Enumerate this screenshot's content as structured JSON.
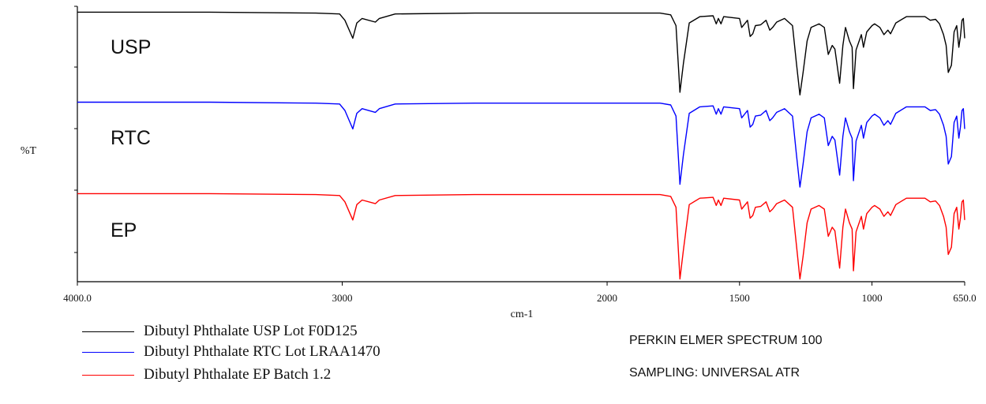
{
  "chart_data": {
    "type": "line",
    "title": "",
    "xlabel": "cm-1",
    "ylabel": "%T",
    "xlim": [
      4000.0,
      650.0
    ],
    "x_reversed": true,
    "x_ticks": [
      {
        "value": 4000,
        "label": "4000.0"
      },
      {
        "value": 3000,
        "label": "3000"
      },
      {
        "value": 2000,
        "label": "2000"
      },
      {
        "value": 1500,
        "label": "1500"
      },
      {
        "value": 1000,
        "label": "1000"
      },
      {
        "value": 650,
        "label": "650.0"
      }
    ],
    "grid": false,
    "legend_position": "bottom-left",
    "series": [
      {
        "name": "Dibutyl Phthalate USP Lot F0D125",
        "tag": "USP",
        "color": "#000000",
        "points": [
          [
            4000,
            97
          ],
          [
            3500,
            97
          ],
          [
            3100,
            96
          ],
          [
            3010,
            95
          ],
          [
            2990,
            88
          ],
          [
            2960,
            68
          ],
          [
            2945,
            85
          ],
          [
            2925,
            90
          ],
          [
            2875,
            86
          ],
          [
            2860,
            90
          ],
          [
            2800,
            95
          ],
          [
            2500,
            96
          ],
          [
            2000,
            96
          ],
          [
            1800,
            96
          ],
          [
            1760,
            94
          ],
          [
            1740,
            82
          ],
          [
            1725,
            8
          ],
          [
            1712,
            40
          ],
          [
            1690,
            85
          ],
          [
            1650,
            92
          ],
          [
            1600,
            93
          ],
          [
            1588,
            84
          ],
          [
            1580,
            90
          ],
          [
            1570,
            84
          ],
          [
            1560,
            92
          ],
          [
            1500,
            90
          ],
          [
            1492,
            80
          ],
          [
            1470,
            88
          ],
          [
            1460,
            70
          ],
          [
            1450,
            73
          ],
          [
            1440,
            82
          ],
          [
            1420,
            83
          ],
          [
            1400,
            88
          ],
          [
            1386,
            77
          ],
          [
            1375,
            80
          ],
          [
            1360,
            86
          ],
          [
            1330,
            90
          ],
          [
            1300,
            82
          ],
          [
            1285,
            40
          ],
          [
            1272,
            5
          ],
          [
            1260,
            30
          ],
          [
            1245,
            65
          ],
          [
            1230,
            80
          ],
          [
            1200,
            84
          ],
          [
            1180,
            80
          ],
          [
            1165,
            50
          ],
          [
            1150,
            60
          ],
          [
            1140,
            56
          ],
          [
            1122,
            18
          ],
          [
            1110,
            60
          ],
          [
            1100,
            80
          ],
          [
            1085,
            65
          ],
          [
            1075,
            58
          ],
          [
            1070,
            12
          ],
          [
            1060,
            55
          ],
          [
            1040,
            72
          ],
          [
            1032,
            58
          ],
          [
            1020,
            75
          ],
          [
            1000,
            82
          ],
          [
            990,
            84
          ],
          [
            970,
            80
          ],
          [
            955,
            72
          ],
          [
            940,
            77
          ],
          [
            930,
            73
          ],
          [
            910,
            85
          ],
          [
            870,
            92
          ],
          [
            800,
            92
          ],
          [
            780,
            88
          ],
          [
            760,
            89
          ],
          [
            745,
            84
          ],
          [
            730,
            72
          ],
          [
            720,
            60
          ],
          [
            712,
            30
          ],
          [
            700,
            38
          ],
          [
            690,
            75
          ],
          [
            680,
            82
          ],
          [
            672,
            58
          ],
          [
            666,
            70
          ],
          [
            660,
            88
          ],
          [
            655,
            90
          ],
          [
            650,
            68
          ]
        ]
      },
      {
        "name": "Dibutyl Phthalate RTC  Lot LRAA1470",
        "tag": "RTC",
        "color": "#0000ff",
        "points": [
          [
            4000,
            97
          ],
          [
            3500,
            97
          ],
          [
            3100,
            96
          ],
          [
            3010,
            95
          ],
          [
            2990,
            88
          ],
          [
            2960,
            68
          ],
          [
            2945,
            85
          ],
          [
            2925,
            90
          ],
          [
            2875,
            86
          ],
          [
            2860,
            90
          ],
          [
            2800,
            95
          ],
          [
            2500,
            96
          ],
          [
            2000,
            96
          ],
          [
            1800,
            96
          ],
          [
            1760,
            94
          ],
          [
            1740,
            82
          ],
          [
            1725,
            8
          ],
          [
            1712,
            40
          ],
          [
            1690,
            85
          ],
          [
            1650,
            92
          ],
          [
            1600,
            93
          ],
          [
            1588,
            84
          ],
          [
            1580,
            90
          ],
          [
            1570,
            84
          ],
          [
            1560,
            92
          ],
          [
            1500,
            90
          ],
          [
            1492,
            80
          ],
          [
            1470,
            88
          ],
          [
            1460,
            70
          ],
          [
            1450,
            73
          ],
          [
            1440,
            82
          ],
          [
            1420,
            83
          ],
          [
            1400,
            88
          ],
          [
            1386,
            77
          ],
          [
            1375,
            80
          ],
          [
            1360,
            86
          ],
          [
            1330,
            90
          ],
          [
            1300,
            82
          ],
          [
            1285,
            40
          ],
          [
            1272,
            5
          ],
          [
            1260,
            30
          ],
          [
            1245,
            65
          ],
          [
            1230,
            80
          ],
          [
            1200,
            84
          ],
          [
            1180,
            80
          ],
          [
            1165,
            50
          ],
          [
            1150,
            60
          ],
          [
            1140,
            56
          ],
          [
            1122,
            18
          ],
          [
            1110,
            60
          ],
          [
            1100,
            80
          ],
          [
            1085,
            65
          ],
          [
            1075,
            58
          ],
          [
            1070,
            12
          ],
          [
            1060,
            55
          ],
          [
            1040,
            72
          ],
          [
            1032,
            58
          ],
          [
            1020,
            75
          ],
          [
            1000,
            82
          ],
          [
            990,
            84
          ],
          [
            970,
            80
          ],
          [
            955,
            72
          ],
          [
            940,
            77
          ],
          [
            930,
            73
          ],
          [
            910,
            85
          ],
          [
            870,
            92
          ],
          [
            800,
            92
          ],
          [
            780,
            88
          ],
          [
            760,
            89
          ],
          [
            745,
            84
          ],
          [
            730,
            72
          ],
          [
            720,
            60
          ],
          [
            712,
            30
          ],
          [
            700,
            38
          ],
          [
            690,
            75
          ],
          [
            680,
            82
          ],
          [
            672,
            58
          ],
          [
            666,
            70
          ],
          [
            660,
            88
          ],
          [
            655,
            90
          ],
          [
            650,
            68
          ]
        ]
      },
      {
        "name": "Dibutyl Phthalate EP Batch 1.2",
        "tag": "EP",
        "color": "#ff0000",
        "points": [
          [
            4000,
            97
          ],
          [
            3500,
            97
          ],
          [
            3100,
            96
          ],
          [
            3010,
            95
          ],
          [
            2990,
            88
          ],
          [
            2960,
            68
          ],
          [
            2945,
            85
          ],
          [
            2925,
            90
          ],
          [
            2875,
            86
          ],
          [
            2860,
            90
          ],
          [
            2800,
            95
          ],
          [
            2500,
            96
          ],
          [
            2000,
            96
          ],
          [
            1800,
            96
          ],
          [
            1760,
            94
          ],
          [
            1740,
            82
          ],
          [
            1725,
            3
          ],
          [
            1712,
            35
          ],
          [
            1690,
            85
          ],
          [
            1650,
            92
          ],
          [
            1600,
            93
          ],
          [
            1588,
            84
          ],
          [
            1580,
            90
          ],
          [
            1570,
            84
          ],
          [
            1560,
            92
          ],
          [
            1500,
            90
          ],
          [
            1492,
            80
          ],
          [
            1470,
            88
          ],
          [
            1460,
            70
          ],
          [
            1450,
            73
          ],
          [
            1440,
            82
          ],
          [
            1420,
            83
          ],
          [
            1400,
            88
          ],
          [
            1386,
            77
          ],
          [
            1375,
            80
          ],
          [
            1360,
            86
          ],
          [
            1330,
            90
          ],
          [
            1300,
            82
          ],
          [
            1285,
            40
          ],
          [
            1272,
            3
          ],
          [
            1260,
            28
          ],
          [
            1245,
            65
          ],
          [
            1230,
            80
          ],
          [
            1200,
            84
          ],
          [
            1180,
            80
          ],
          [
            1165,
            50
          ],
          [
            1150,
            60
          ],
          [
            1140,
            56
          ],
          [
            1122,
            15
          ],
          [
            1110,
            60
          ],
          [
            1100,
            80
          ],
          [
            1085,
            65
          ],
          [
            1075,
            58
          ],
          [
            1070,
            12
          ],
          [
            1060,
            55
          ],
          [
            1040,
            72
          ],
          [
            1032,
            58
          ],
          [
            1020,
            75
          ],
          [
            1000,
            82
          ],
          [
            990,
            84
          ],
          [
            970,
            80
          ],
          [
            955,
            72
          ],
          [
            940,
            77
          ],
          [
            930,
            73
          ],
          [
            910,
            85
          ],
          [
            870,
            92
          ],
          [
            800,
            92
          ],
          [
            780,
            88
          ],
          [
            760,
            89
          ],
          [
            745,
            84
          ],
          [
            730,
            72
          ],
          [
            720,
            60
          ],
          [
            712,
            30
          ],
          [
            700,
            38
          ],
          [
            690,
            75
          ],
          [
            680,
            82
          ],
          [
            672,
            58
          ],
          [
            666,
            70
          ],
          [
            660,
            88
          ],
          [
            655,
            90
          ],
          [
            650,
            68
          ]
        ]
      }
    ]
  },
  "instrument": {
    "model": "PERKIN ELMER SPECTRUM 100",
    "sampling": "SAMPLING:  UNIVERSAL ATR"
  }
}
